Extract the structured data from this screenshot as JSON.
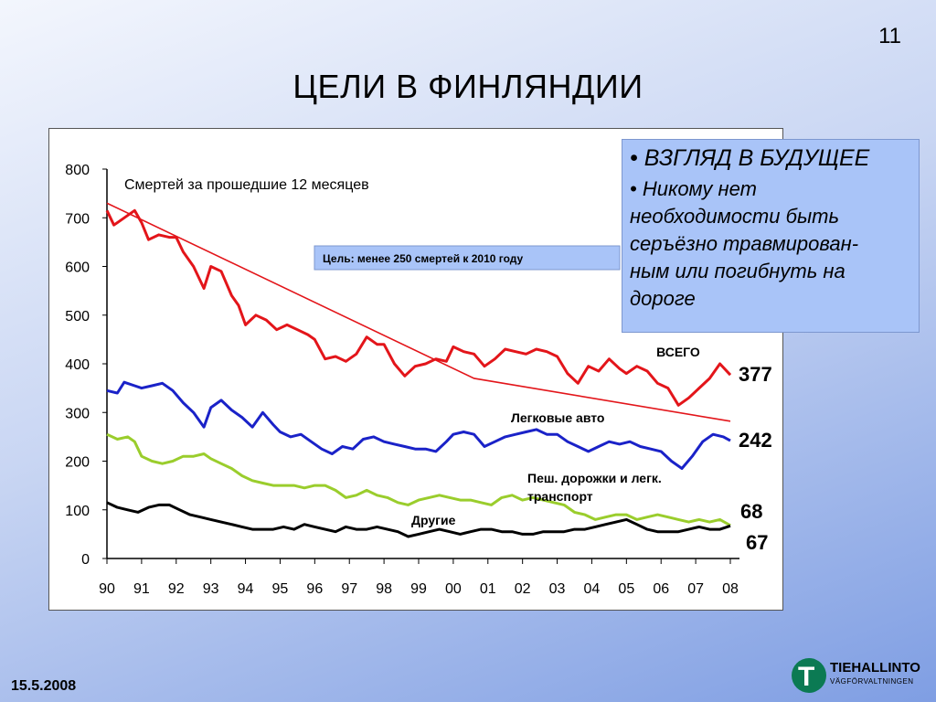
{
  "slide_number": "11",
  "title": "ЦЕЛИ В ФИНЛЯНДИИ",
  "callout": {
    "bullet1": "• ВЗГЛЯД В БУДУЩЕЕ",
    "bullet2_lines": [
      "• Никому нет",
      "необходимости быть",
      "серъёзно травмирован-",
      "ным или  погибнуть на",
      "дороге"
    ]
  },
  "footer": {
    "date": "15.5.2008",
    "logo_name": "TIEHALLINTO",
    "logo_sub": "VÄGFÖRVALTNINGEN",
    "logo_mark": "T"
  },
  "colors": {
    "total": "#e3151a",
    "cars": "#1a22c8",
    "peds": "#9acd2c",
    "other": "#000000",
    "target": "#e3151a"
  },
  "chart_data": {
    "type": "line",
    "title": "Смертей за прошедшие 12 месяцев",
    "target_label": "Цель: менее 250 смертей к 2010 году",
    "x_ticks": [
      "90",
      "91",
      "92",
      "93",
      "94",
      "95",
      "96",
      "97",
      "98",
      "99",
      "00",
      "01",
      "02",
      "03",
      "04",
      "05",
      "06",
      "07",
      "08"
    ],
    "ylim": [
      0,
      800
    ],
    "y_ticks": [
      0,
      100,
      200,
      300,
      400,
      500,
      600,
      700,
      800
    ],
    "xlim": [
      1990,
      2008
    ],
    "series": [
      {
        "name": "ВСЕГО",
        "end_value": "377",
        "color": "#e3151a",
        "points": [
          [
            1990.0,
            715
          ],
          [
            1990.2,
            685
          ],
          [
            1990.5,
            700
          ],
          [
            1990.8,
            715
          ],
          [
            1991.0,
            690
          ],
          [
            1991.2,
            655
          ],
          [
            1991.5,
            665
          ],
          [
            1991.8,
            660
          ],
          [
            1992.0,
            660
          ],
          [
            1992.2,
            630
          ],
          [
            1992.5,
            600
          ],
          [
            1992.8,
            555
          ],
          [
            1993.0,
            600
          ],
          [
            1993.3,
            590
          ],
          [
            1993.6,
            540
          ],
          [
            1993.8,
            520
          ],
          [
            1994.0,
            480
          ],
          [
            1994.3,
            500
          ],
          [
            1994.6,
            490
          ],
          [
            1994.9,
            470
          ],
          [
            1995.2,
            480
          ],
          [
            1995.5,
            470
          ],
          [
            1995.8,
            460
          ],
          [
            1996.0,
            450
          ],
          [
            1996.3,
            410
          ],
          [
            1996.6,
            415
          ],
          [
            1996.9,
            405
          ],
          [
            1997.2,
            420
          ],
          [
            1997.5,
            455
          ],
          [
            1997.8,
            440
          ],
          [
            1998.0,
            440
          ],
          [
            1998.3,
            400
          ],
          [
            1998.6,
            375
          ],
          [
            1998.9,
            395
          ],
          [
            1999.2,
            400
          ],
          [
            1999.5,
            410
          ],
          [
            1999.8,
            405
          ],
          [
            2000.0,
            435
          ],
          [
            2000.3,
            425
          ],
          [
            2000.6,
            420
          ],
          [
            2000.9,
            395
          ],
          [
            2001.2,
            410
          ],
          [
            2001.5,
            430
          ],
          [
            2001.8,
            425
          ],
          [
            2002.1,
            420
          ],
          [
            2002.4,
            430
          ],
          [
            2002.7,
            425
          ],
          [
            2003.0,
            415
          ],
          [
            2003.3,
            380
          ],
          [
            2003.6,
            360
          ],
          [
            2003.9,
            395
          ],
          [
            2004.2,
            385
          ],
          [
            2004.5,
            410
          ],
          [
            2004.8,
            390
          ],
          [
            2005.0,
            380
          ],
          [
            2005.3,
            395
          ],
          [
            2005.6,
            385
          ],
          [
            2005.9,
            360
          ],
          [
            2006.2,
            350
          ],
          [
            2006.5,
            315
          ],
          [
            2006.8,
            330
          ],
          [
            2007.1,
            350
          ],
          [
            2007.4,
            370
          ],
          [
            2007.7,
            400
          ],
          [
            2008.0,
            377
          ]
        ]
      },
      {
        "name": "Легковые авто",
        "end_value": "242",
        "color": "#1a22c8",
        "points": [
          [
            1990.0,
            345
          ],
          [
            1990.3,
            340
          ],
          [
            1990.5,
            362
          ],
          [
            1990.8,
            355
          ],
          [
            1991.0,
            350
          ],
          [
            1991.3,
            355
          ],
          [
            1991.6,
            360
          ],
          [
            1991.9,
            345
          ],
          [
            1992.2,
            320
          ],
          [
            1992.5,
            300
          ],
          [
            1992.8,
            270
          ],
          [
            1993.0,
            310
          ],
          [
            1993.3,
            325
          ],
          [
            1993.6,
            305
          ],
          [
            1993.9,
            290
          ],
          [
            1994.2,
            270
          ],
          [
            1994.5,
            300
          ],
          [
            1994.8,
            275
          ],
          [
            1995.0,
            260
          ],
          [
            1995.3,
            250
          ],
          [
            1995.6,
            255
          ],
          [
            1995.9,
            240
          ],
          [
            1996.2,
            225
          ],
          [
            1996.5,
            215
          ],
          [
            1996.8,
            230
          ],
          [
            1997.1,
            225
          ],
          [
            1997.4,
            245
          ],
          [
            1997.7,
            250
          ],
          [
            1998.0,
            240
          ],
          [
            1998.3,
            235
          ],
          [
            1998.6,
            230
          ],
          [
            1998.9,
            225
          ],
          [
            1999.2,
            225
          ],
          [
            1999.5,
            220
          ],
          [
            1999.8,
            240
          ],
          [
            2000.0,
            255
          ],
          [
            2000.3,
            260
          ],
          [
            2000.6,
            255
          ],
          [
            2000.9,
            230
          ],
          [
            2001.2,
            240
          ],
          [
            2001.5,
            250
          ],
          [
            2001.8,
            255
          ],
          [
            2002.1,
            260
          ],
          [
            2002.4,
            265
          ],
          [
            2002.7,
            255
          ],
          [
            2003.0,
            255
          ],
          [
            2003.3,
            240
          ],
          [
            2003.6,
            230
          ],
          [
            2003.9,
            220
          ],
          [
            2004.2,
            230
          ],
          [
            2004.5,
            240
          ],
          [
            2004.8,
            235
          ],
          [
            2005.1,
            240
          ],
          [
            2005.4,
            230
          ],
          [
            2005.7,
            225
          ],
          [
            2006.0,
            220
          ],
          [
            2006.3,
            200
          ],
          [
            2006.6,
            185
          ],
          [
            2006.9,
            210
          ],
          [
            2007.2,
            240
          ],
          [
            2007.5,
            255
          ],
          [
            2007.8,
            250
          ],
          [
            2008.0,
            242
          ]
        ]
      },
      {
        "name": "Пеш. дорожки и легк. транспорт",
        "end_value": "68",
        "color": "#9acd2c",
        "points": [
          [
            1990.0,
            255
          ],
          [
            1990.3,
            245
          ],
          [
            1990.6,
            250
          ],
          [
            1990.8,
            240
          ],
          [
            1991.0,
            210
          ],
          [
            1991.3,
            200
          ],
          [
            1991.6,
            195
          ],
          [
            1991.9,
            200
          ],
          [
            1992.2,
            210
          ],
          [
            1992.5,
            210
          ],
          [
            1992.8,
            215
          ],
          [
            1993.0,
            205
          ],
          [
            1993.3,
            195
          ],
          [
            1993.6,
            185
          ],
          [
            1993.9,
            170
          ],
          [
            1994.2,
            160
          ],
          [
            1994.5,
            155
          ],
          [
            1994.8,
            150
          ],
          [
            1995.1,
            150
          ],
          [
            1995.4,
            150
          ],
          [
            1995.7,
            145
          ],
          [
            1996.0,
            150
          ],
          [
            1996.3,
            150
          ],
          [
            1996.6,
            140
          ],
          [
            1996.9,
            125
          ],
          [
            1997.2,
            130
          ],
          [
            1997.5,
            140
          ],
          [
            1997.8,
            130
          ],
          [
            1998.1,
            125
          ],
          [
            1998.4,
            115
          ],
          [
            1998.7,
            110
          ],
          [
            1999.0,
            120
          ],
          [
            1999.3,
            125
          ],
          [
            1999.6,
            130
          ],
          [
            1999.9,
            125
          ],
          [
            2000.2,
            120
          ],
          [
            2000.5,
            120
          ],
          [
            2000.8,
            115
          ],
          [
            2001.1,
            110
          ],
          [
            2001.4,
            125
          ],
          [
            2001.7,
            130
          ],
          [
            2002.0,
            120
          ],
          [
            2002.3,
            125
          ],
          [
            2002.6,
            120
          ],
          [
            2002.9,
            115
          ],
          [
            2003.2,
            110
          ],
          [
            2003.5,
            95
          ],
          [
            2003.8,
            90
          ],
          [
            2004.1,
            80
          ],
          [
            2004.4,
            85
          ],
          [
            2004.7,
            90
          ],
          [
            2005.0,
            90
          ],
          [
            2005.3,
            80
          ],
          [
            2005.6,
            85
          ],
          [
            2005.9,
            90
          ],
          [
            2006.2,
            85
          ],
          [
            2006.5,
            80
          ],
          [
            2006.8,
            75
          ],
          [
            2007.1,
            80
          ],
          [
            2007.4,
            75
          ],
          [
            2007.7,
            80
          ],
          [
            2008.0,
            68
          ]
        ]
      },
      {
        "name": "Другие",
        "end_value": "67",
        "color": "#000000",
        "points": [
          [
            1990.0,
            115
          ],
          [
            1990.3,
            105
          ],
          [
            1990.6,
            100
          ],
          [
            1990.9,
            95
          ],
          [
            1991.2,
            105
          ],
          [
            1991.5,
            110
          ],
          [
            1991.8,
            110
          ],
          [
            1992.1,
            100
          ],
          [
            1992.4,
            90
          ],
          [
            1992.7,
            85
          ],
          [
            1993.0,
            80
          ],
          [
            1993.3,
            75
          ],
          [
            1993.6,
            70
          ],
          [
            1993.9,
            65
          ],
          [
            1994.2,
            60
          ],
          [
            1994.5,
            60
          ],
          [
            1994.8,
            60
          ],
          [
            1995.1,
            65
          ],
          [
            1995.4,
            60
          ],
          [
            1995.7,
            70
          ],
          [
            1996.0,
            65
          ],
          [
            1996.3,
            60
          ],
          [
            1996.6,
            55
          ],
          [
            1996.9,
            65
          ],
          [
            1997.2,
            60
          ],
          [
            1997.5,
            60
          ],
          [
            1997.8,
            65
          ],
          [
            1998.1,
            60
          ],
          [
            1998.4,
            55
          ],
          [
            1998.7,
            45
          ],
          [
            1999.0,
            50
          ],
          [
            1999.3,
            55
          ],
          [
            1999.6,
            60
          ],
          [
            1999.9,
            55
          ],
          [
            2000.2,
            50
          ],
          [
            2000.5,
            55
          ],
          [
            2000.8,
            60
          ],
          [
            2001.1,
            60
          ],
          [
            2001.4,
            55
          ],
          [
            2001.7,
            55
          ],
          [
            2002.0,
            50
          ],
          [
            2002.3,
            50
          ],
          [
            2002.6,
            55
          ],
          [
            2002.9,
            55
          ],
          [
            2003.2,
            55
          ],
          [
            2003.5,
            60
          ],
          [
            2003.8,
            60
          ],
          [
            2004.1,
            65
          ],
          [
            2004.4,
            70
          ],
          [
            2004.7,
            75
          ],
          [
            2005.0,
            80
          ],
          [
            2005.3,
            70
          ],
          [
            2005.6,
            60
          ],
          [
            2005.9,
            55
          ],
          [
            2006.2,
            55
          ],
          [
            2006.5,
            55
          ],
          [
            2006.8,
            60
          ],
          [
            2007.1,
            65
          ],
          [
            2007.4,
            60
          ],
          [
            2007.7,
            60
          ],
          [
            2008.0,
            67
          ]
        ]
      }
    ],
    "target_line": [
      [
        1990.0,
        730
      ],
      [
        2000.6,
        370
      ],
      [
        2008.0,
        282
      ]
    ]
  }
}
